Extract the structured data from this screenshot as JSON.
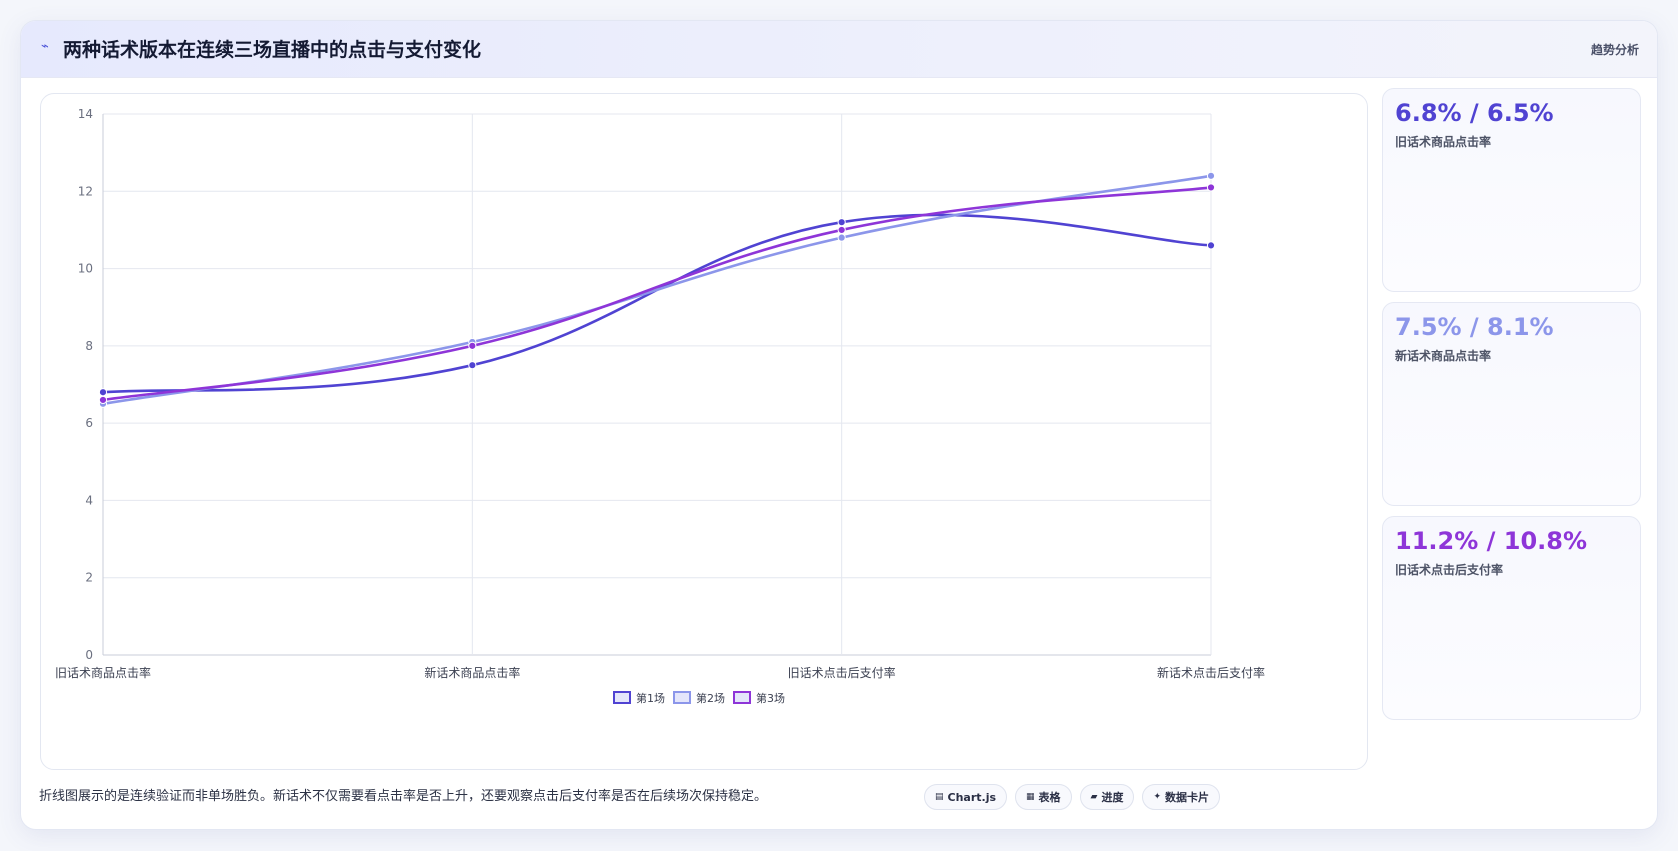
{
  "header": {
    "icon": "trend-line-icon",
    "title": "两种话术版本在连续三场直播中的点击与支付变化",
    "tag": "趋势分析"
  },
  "colors": {
    "series1": "#5043d2",
    "series2": "#8c96ea",
    "series3": "#8e35d8",
    "grid": "#e4e7ef",
    "axis": "#c9cdd8",
    "tick": "#6b7080"
  },
  "chart_data": {
    "type": "line",
    "categories": [
      "旧话术商品点击率",
      "新话术商品点击率",
      "旧话术点击后支付率",
      "新话术点击后支付率"
    ],
    "series": [
      {
        "name": "第1场",
        "values": [
          6.8,
          7.5,
          11.2,
          10.6
        ]
      },
      {
        "name": "第2场",
        "values": [
          6.5,
          8.1,
          10.8,
          12.4
        ]
      },
      {
        "name": "第3场",
        "values": [
          6.6,
          8.0,
          11.0,
          12.1
        ]
      }
    ],
    "ylim": [
      0,
      14
    ],
    "yticks": [
      "0",
      "2",
      "4",
      "6",
      "8",
      "10",
      "12",
      "14"
    ],
    "grid": true,
    "legend": "bottom-center"
  },
  "stats": [
    {
      "value": "6.8% / 6.5%",
      "label": "旧话术商品点击率"
    },
    {
      "value": "7.5% / 8.1%",
      "label": "新话术商品点击率"
    },
    {
      "value": "11.2% / 10.8%",
      "label": "旧话术点击后支付率"
    }
  ],
  "footnote": "折线图展示的是连续验证而非单场胜负。新话术不仅需要看点击率是否上升，还要观察点击后支付率是否在后续场次保持稳定。",
  "chips": [
    {
      "icon": "chart-icon",
      "glyph": "▤",
      "label": "Chart.js"
    },
    {
      "icon": "table-icon",
      "glyph": "▦",
      "label": "表格"
    },
    {
      "icon": "progress-icon",
      "glyph": "▰",
      "label": "进度"
    },
    {
      "icon": "data-card-icon",
      "glyph": "✦",
      "label": "数据卡片"
    }
  ]
}
